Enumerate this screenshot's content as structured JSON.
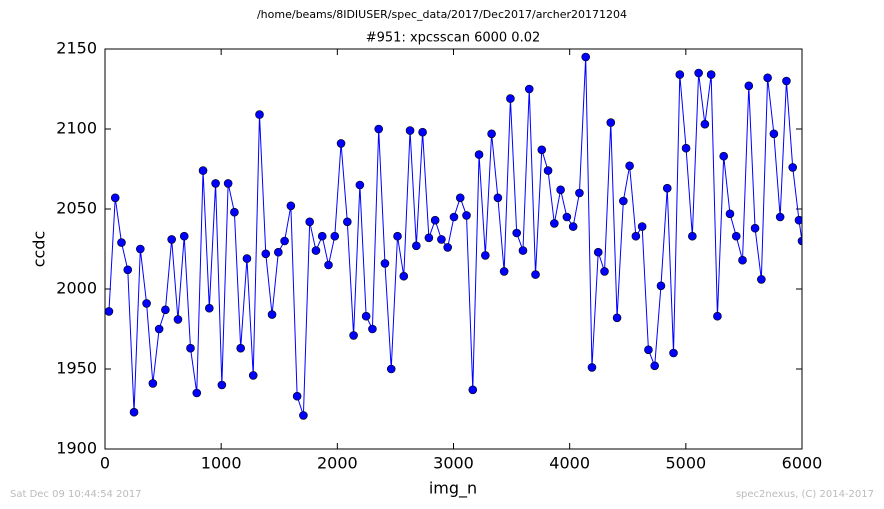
{
  "chart_data": {
    "type": "line",
    "suptitle": "/home/beams/8IDIUSER/spec_data/2017/Dec2017/archer20171204",
    "title": "#951: xpcsscan 6000 0.02",
    "xlabel": "img_n",
    "ylabel": "ccdc",
    "footer_left": "Sat Dec 09 10:44:54 2017",
    "footer_right": "spec2nexus, (C) 2014-2017",
    "xlim": [
      0,
      6000
    ],
    "xticks": [
      0,
      1000,
      2000,
      3000,
      4000,
      5000,
      6000
    ],
    "ylim": [
      1900,
      2150
    ],
    "yticks": [
      1900,
      1950,
      2000,
      2050,
      2100,
      2150
    ],
    "grid": false,
    "x": [
      34,
      88,
      142,
      196,
      250,
      304,
      358,
      412,
      466,
      520,
      574,
      628,
      682,
      736,
      790,
      844,
      898,
      952,
      1006,
      1060,
      1114,
      1168,
      1222,
      1276,
      1330,
      1384,
      1438,
      1492,
      1546,
      1600,
      1654,
      1708,
      1762,
      1816,
      1870,
      1924,
      1978,
      2032,
      2086,
      2140,
      2194,
      2248,
      2302,
      2356,
      2410,
      2464,
      2518,
      2572,
      2626,
      2680,
      2734,
      2788,
      2842,
      2896,
      2950,
      3004,
      3058,
      3112,
      3166,
      3220,
      3274,
      3328,
      3382,
      3436,
      3490,
      3544,
      3598,
      3652,
      3706,
      3760,
      3814,
      3868,
      3922,
      3976,
      4030,
      4084,
      4138,
      4192,
      4246,
      4300,
      4354,
      4408,
      4462,
      4516,
      4570,
      4624,
      4678,
      4732,
      4786,
      4840,
      4894,
      4948,
      5002,
      5056,
      5110,
      5164,
      5218,
      5272,
      5326,
      5380,
      5434,
      5488,
      5542,
      5596,
      5650,
      5704,
      5758,
      5812,
      5866,
      5920,
      5974,
      6000
    ],
    "series": [
      {
        "color": "#0000ff",
        "values": [
          1986,
          2057,
          2029,
          2012,
          1923,
          2025,
          1991,
          1941,
          1975,
          1987,
          2031,
          1981,
          2033,
          1963,
          1935,
          2074,
          1988,
          2066,
          1940,
          2066,
          2048,
          1963,
          2019,
          1946,
          2109,
          2022,
          1984,
          2023,
          2030,
          2052,
          1933,
          1921,
          2042,
          2024,
          2033,
          2015,
          2033,
          2091,
          2042,
          1971,
          2065,
          1983,
          1975,
          2100,
          2016,
          1950,
          2033,
          2008,
          2099,
          2027,
          2098,
          2032,
          2043,
          2031,
          2026,
          2045,
          2057,
          2046,
          1937,
          2084,
          2021,
          2097,
          2057,
          2011,
          2119,
          2035,
          2024,
          2125,
          2009,
          2087,
          2074,
          2041,
          2062,
          2045,
          2039,
          2060,
          2145,
          1951,
          2023,
          2011,
          2104,
          1982,
          2055,
          2077,
          2033,
          2039,
          1962,
          1952,
          2002,
          2063,
          1960,
          2134,
          2088,
          2033,
          2135,
          2103,
          2134,
          1983,
          2083,
          2047,
          2033,
          2018,
          2127,
          2038,
          2006,
          2132,
          2097,
          2045,
          2130,
          2076,
          2043,
          2030
        ]
      }
    ]
  }
}
